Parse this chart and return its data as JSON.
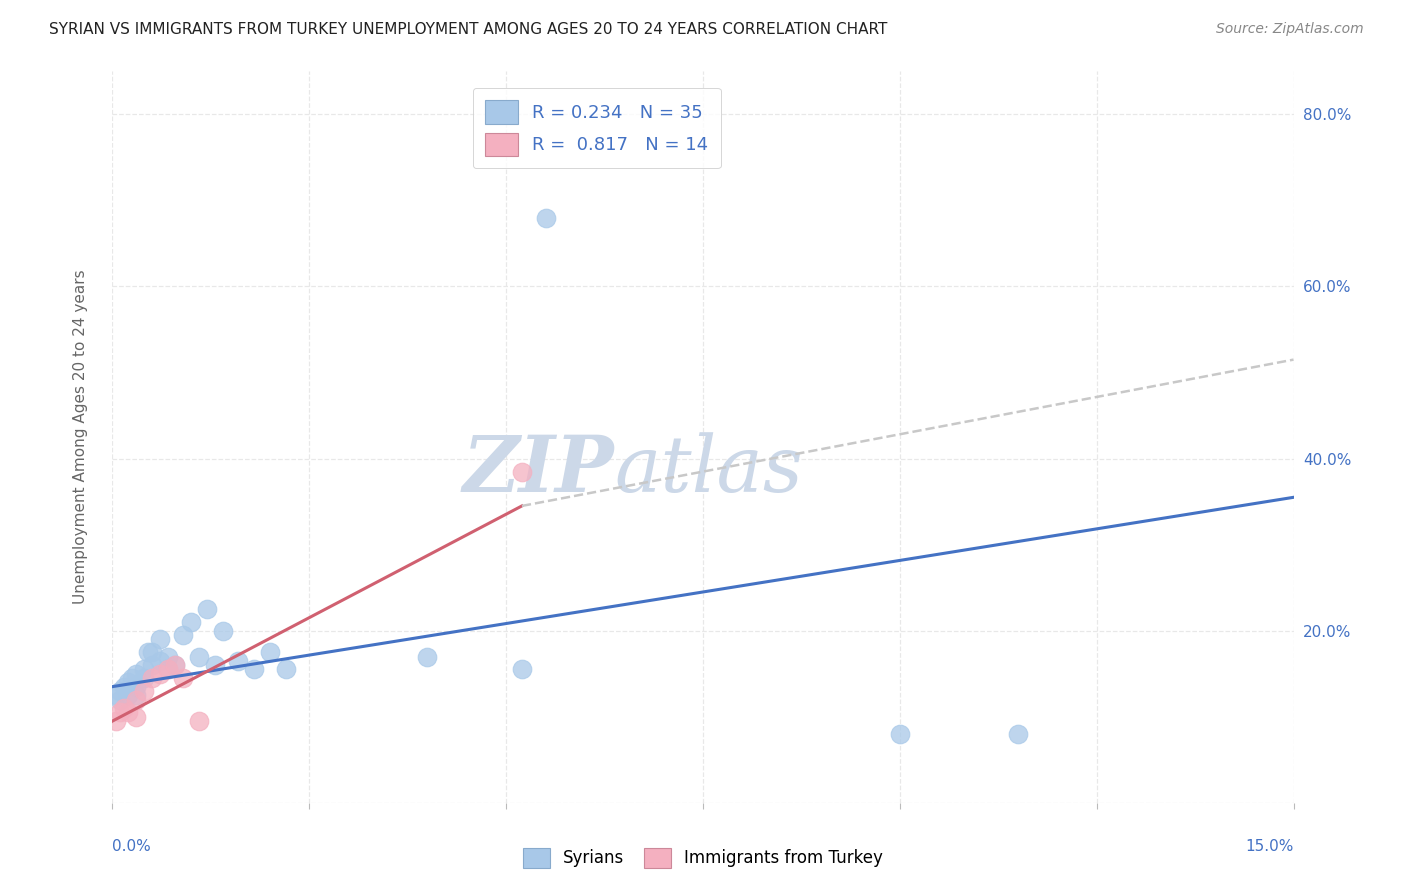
{
  "title": "SYRIAN VS IMMIGRANTS FROM TURKEY UNEMPLOYMENT AMONG AGES 20 TO 24 YEARS CORRELATION CHART",
  "source": "Source: ZipAtlas.com",
  "ylabel": "Unemployment Among Ages 20 to 24 years",
  "legend_r1": "R = 0.234   N = 35",
  "legend_r2": "R =  0.817   N = 14",
  "syrians_x": [
    0.0005,
    0.001,
    0.001,
    0.0015,
    0.002,
    0.002,
    0.0025,
    0.003,
    0.003,
    0.003,
    0.004,
    0.004,
    0.0045,
    0.005,
    0.005,
    0.006,
    0.006,
    0.007,
    0.007,
    0.008,
    0.009,
    0.01,
    0.011,
    0.012,
    0.013,
    0.014,
    0.016,
    0.018,
    0.02,
    0.022,
    0.04,
    0.052,
    0.055,
    0.1,
    0.115
  ],
  "syrians_y": [
    0.125,
    0.12,
    0.13,
    0.135,
    0.14,
    0.125,
    0.145,
    0.15,
    0.135,
    0.125,
    0.155,
    0.145,
    0.175,
    0.16,
    0.175,
    0.19,
    0.165,
    0.17,
    0.155,
    0.16,
    0.195,
    0.21,
    0.17,
    0.225,
    0.16,
    0.2,
    0.165,
    0.155,
    0.175,
    0.155,
    0.17,
    0.155,
    0.68,
    0.08,
    0.08
  ],
  "turkey_x": [
    0.0005,
    0.001,
    0.0015,
    0.002,
    0.003,
    0.003,
    0.004,
    0.005,
    0.006,
    0.007,
    0.008,
    0.009,
    0.011,
    0.052
  ],
  "turkey_y": [
    0.095,
    0.105,
    0.11,
    0.105,
    0.12,
    0.1,
    0.13,
    0.145,
    0.15,
    0.155,
    0.16,
    0.145,
    0.095,
    0.385
  ],
  "blue_trend_x0": 0.0,
  "blue_trend_y0": 0.135,
  "blue_trend_x1": 0.15,
  "blue_trend_y1": 0.355,
  "pink_trend_x0": 0.0,
  "pink_trend_y0": 0.095,
  "pink_trend_x1": 0.052,
  "pink_trend_y1": 0.345,
  "dash_trend_x0": 0.052,
  "dash_trend_y0": 0.345,
  "dash_trend_x1": 0.15,
  "dash_trend_y1": 0.515,
  "blue_scatter_color": "#a8c8e8",
  "pink_scatter_color": "#f4b0c0",
  "blue_line_color": "#4472c4",
  "pink_line_color": "#d06070",
  "gray_dash_color": "#c8c8c8",
  "watermark_color": "#ccd8e8",
  "background_color": "#ffffff",
  "grid_color": "#e8e8e8",
  "right_axis_color": "#4472c4",
  "title_color": "#222222",
  "source_color": "#888888",
  "ylabel_color": "#666666",
  "xlim": [
    0,
    0.15
  ],
  "ylim": [
    0,
    0.85
  ],
  "yticks": [
    0.0,
    0.2,
    0.4,
    0.6,
    0.8
  ],
  "yticklabels_right": [
    "",
    "20.0%",
    "40.0%",
    "60.0%",
    "80.0%"
  ],
  "xticks": [
    0,
    0.025,
    0.05,
    0.075,
    0.1,
    0.125,
    0.15
  ]
}
